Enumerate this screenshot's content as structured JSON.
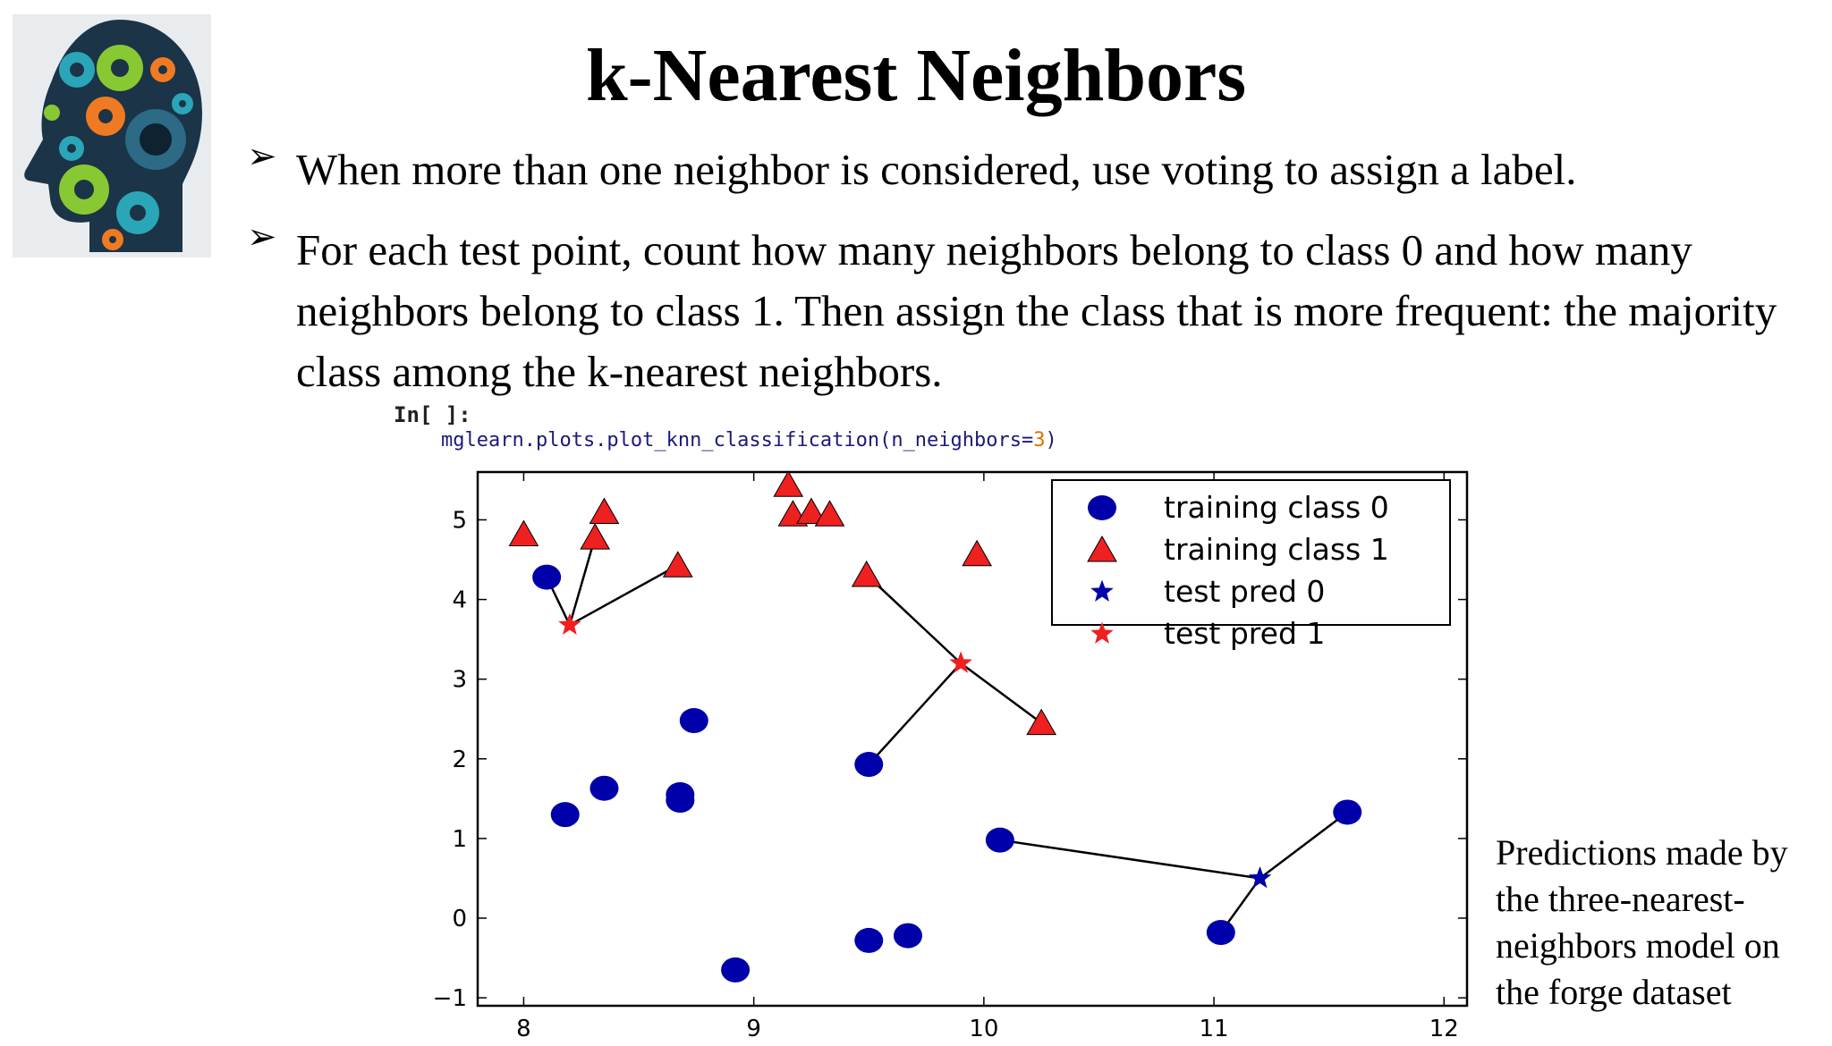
{
  "slide": {
    "title": "k-Nearest Neighbors",
    "bullets": [
      "When more than one neighbor is considered, use voting to assign a label.",
      "For each test point, count how many neighbors belong to class 0 and how many neighbors belong to class 1. Then assign the class that is more frequent: the majority class among the k-nearest neighbors."
    ],
    "bullet_marker": "➢",
    "code": {
      "prompt": "In[  ]:",
      "call_prefix": "mglearn.plots.plot_knn_classification(n_neighbors=",
      "call_arg": "3",
      "call_suffix": ")"
    },
    "caption": "Predictions made by the three-nearest-neighbors model on the forge dataset",
    "logo_icon": "head-gears-icon"
  },
  "chart_data": {
    "type": "scatter",
    "xlim": [
      7.8,
      12.1
    ],
    "ylim": [
      -1.1,
      5.6
    ],
    "x_ticks": [
      8,
      9,
      10,
      11,
      12
    ],
    "y_ticks": [
      -1,
      0,
      1,
      2,
      3,
      4,
      5
    ],
    "x_tick_labels": [
      "8",
      "9",
      "10",
      "11",
      "12"
    ],
    "y_tick_labels": [
      "−1",
      "0",
      "1",
      "2",
      "3",
      "4",
      "5"
    ],
    "legend_position": "top-right",
    "grid": false,
    "colors": {
      "class0": "#0000aa",
      "class1": "#ee2020",
      "edge": "#000000"
    },
    "series": [
      {
        "name": "training class 0",
        "marker": "circle",
        "color": "#0000aa",
        "points": [
          [
            8.1,
            4.28
          ],
          [
            8.18,
            1.3
          ],
          [
            8.35,
            1.63
          ],
          [
            8.68,
            1.55
          ],
          [
            8.68,
            1.48
          ],
          [
            8.74,
            2.48
          ],
          [
            8.92,
            -0.65
          ],
          [
            9.5,
            1.93
          ],
          [
            9.5,
            -0.28
          ],
          [
            9.67,
            -0.22
          ],
          [
            10.07,
            0.98
          ],
          [
            11.03,
            -0.18
          ],
          [
            11.58,
            1.33
          ]
        ]
      },
      {
        "name": "training class 1",
        "marker": "triangle",
        "color": "#ee2020",
        "points": [
          [
            8.0,
            4.82
          ],
          [
            8.31,
            4.78
          ],
          [
            8.35,
            5.1
          ],
          [
            8.67,
            4.43
          ],
          [
            9.15,
            5.44
          ],
          [
            9.17,
            5.07
          ],
          [
            9.25,
            5.1
          ],
          [
            9.33,
            5.07
          ],
          [
            9.49,
            4.31
          ],
          [
            9.97,
            4.57
          ],
          [
            10.25,
            2.45
          ]
        ]
      },
      {
        "name": "test pred 0",
        "marker": "star",
        "color": "#0000aa",
        "points": [
          [
            11.2,
            0.5
          ]
        ]
      },
      {
        "name": "test pred 1",
        "marker": "star",
        "color": "#ee2020",
        "points": [
          [
            8.2,
            3.68
          ],
          [
            9.9,
            3.2
          ]
        ]
      }
    ],
    "neighbor_links": [
      {
        "test": [
          8.2,
          3.68
        ],
        "neighbors": [
          [
            8.1,
            4.28
          ],
          [
            8.31,
            4.78
          ],
          [
            8.67,
            4.43
          ]
        ]
      },
      {
        "test": [
          9.9,
          3.2
        ],
        "neighbors": [
          [
            9.49,
            4.31
          ],
          [
            10.25,
            2.45
          ],
          [
            9.5,
            1.93
          ]
        ]
      },
      {
        "test": [
          11.2,
          0.5
        ],
        "neighbors": [
          [
            10.07,
            0.98
          ],
          [
            11.03,
            -0.18
          ],
          [
            11.58,
            1.33
          ]
        ]
      }
    ]
  }
}
